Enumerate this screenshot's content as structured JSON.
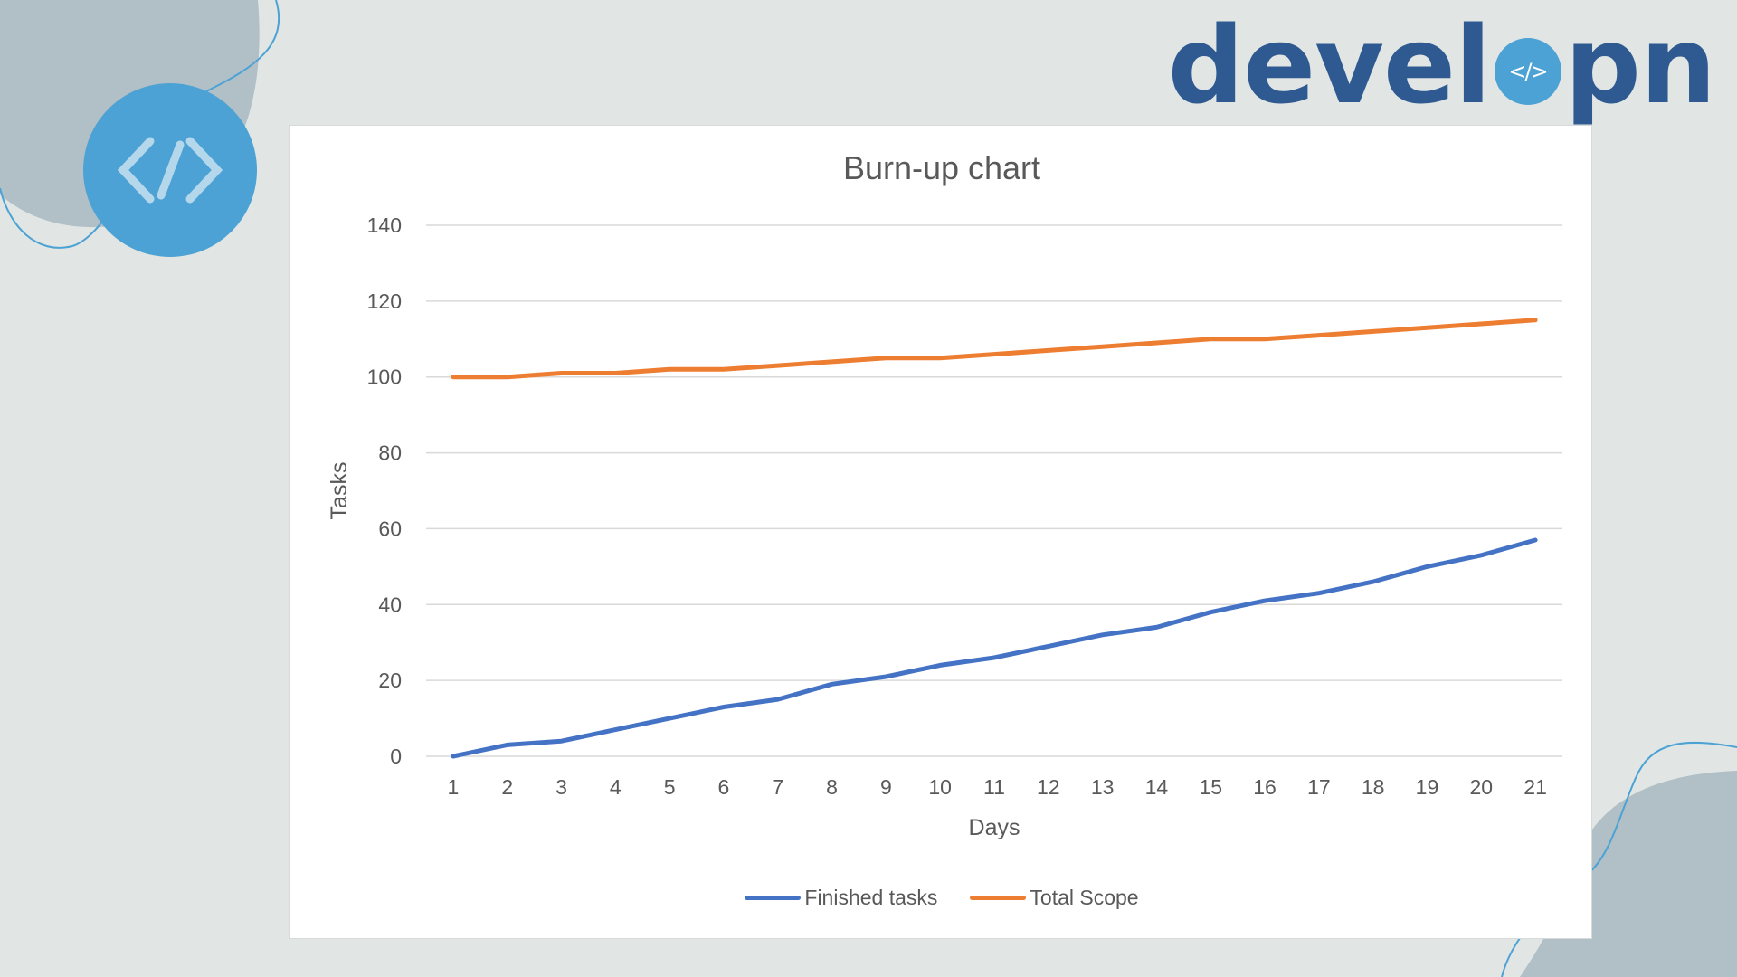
{
  "brand": {
    "prefix": "devel",
    "middle_icon": "</>",
    "suffix": "pn"
  },
  "decor": {
    "icon": "code-brackets-icon",
    "icon_glyph": "</>"
  },
  "colors": {
    "background": "#e1e6e4",
    "blob": "#b1bfc6",
    "badge": "#4ca2d4",
    "brand": "#2f5a91",
    "finished": "#4472c4",
    "scope": "#ed7d31",
    "grid": "#d9d9d9",
    "text": "#595959"
  },
  "chart_data": {
    "type": "line",
    "title": "Burn-up chart",
    "xlabel": "Days",
    "ylabel": "Tasks",
    "x": [
      1,
      2,
      3,
      4,
      5,
      6,
      7,
      8,
      9,
      10,
      11,
      12,
      13,
      14,
      15,
      16,
      17,
      18,
      19,
      20,
      21
    ],
    "ylim": [
      0,
      140
    ],
    "yticks": [
      0,
      20,
      40,
      60,
      80,
      100,
      120,
      140
    ],
    "grid": true,
    "legend_position": "bottom",
    "series": [
      {
        "name": "Finished tasks",
        "color": "#4472c4",
        "values": [
          0,
          3,
          4,
          7,
          10,
          13,
          15,
          19,
          21,
          24,
          26,
          29,
          32,
          34,
          38,
          41,
          43,
          46,
          50,
          53,
          57
        ]
      },
      {
        "name": "Total Scope",
        "color": "#ed7d31",
        "values": [
          100,
          100,
          101,
          101,
          102,
          102,
          103,
          104,
          105,
          105,
          106,
          107,
          108,
          109,
          110,
          110,
          111,
          112,
          113,
          114,
          115
        ]
      }
    ]
  }
}
